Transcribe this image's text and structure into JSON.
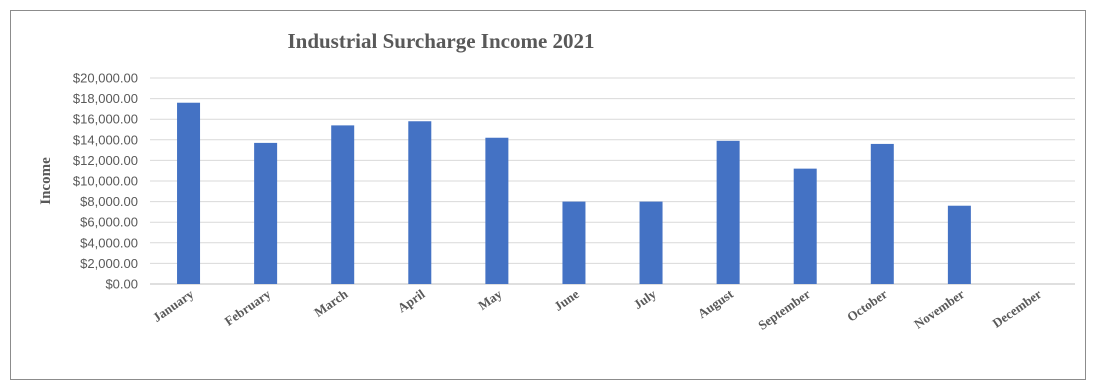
{
  "chart_data": {
    "type": "bar",
    "title": "Industrial Surcharge Income 2021",
    "xlabel": "",
    "ylabel": "Income",
    "categories": [
      "January",
      "February",
      "March",
      "April",
      "May",
      "June",
      "July",
      "August",
      "September",
      "October",
      "November",
      "December"
    ],
    "values": [
      17600,
      13700,
      15400,
      15800,
      14200,
      8000,
      8000,
      13900,
      11200,
      13600,
      7600,
      0
    ],
    "ylim": [
      0,
      20000
    ],
    "y_ticks": [
      "$0.00",
      "$2,000.00",
      "$4,000.00",
      "$6,000.00",
      "$8,000.00",
      "$10,000.00",
      "$12,000.00",
      "$14,000.00",
      "$16,000.00",
      "$18,000.00",
      "$20,000.00"
    ],
    "bar_color": "#4472c4",
    "grid": true,
    "legend": "none"
  }
}
